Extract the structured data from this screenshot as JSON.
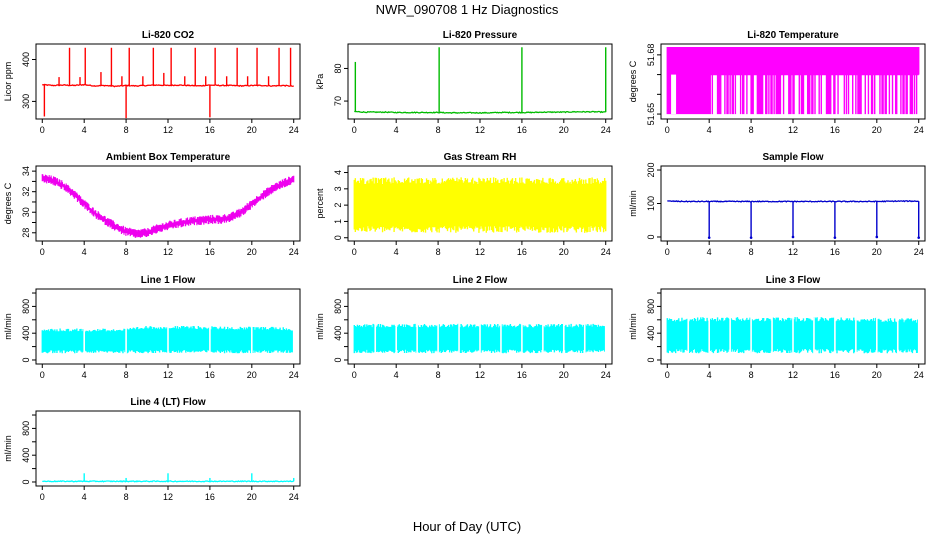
{
  "figure": {
    "title": "NWR_090708  1 Hz Diagnostics",
    "xlabel": "Hour of Day (UTC)"
  },
  "chart_data": [
    {
      "type": "line",
      "title": "Li-820 CO2",
      "ylabel": "Licor ppm",
      "xlim": [
        -0.6,
        24.6
      ],
      "ylim": [
        258,
        437
      ],
      "xticks": [
        0,
        4,
        8,
        12,
        16,
        20,
        24
      ],
      "yticks": [
        300,
        400
      ],
      "color": "#ff0000",
      "series": [
        {
          "x": [
            0,
            1,
            2,
            3,
            4,
            5,
            6,
            7,
            8,
            9,
            10,
            11,
            12,
            13,
            14,
            15,
            16,
            17,
            18,
            19,
            20,
            21,
            22,
            23,
            24
          ],
          "y": [
            340,
            338,
            339,
            338,
            340,
            337,
            338,
            336,
            338,
            337,
            338,
            339,
            338,
            339,
            338,
            337,
            339,
            338,
            338,
            337,
            338,
            338,
            337,
            338,
            336
          ]
        }
      ],
      "spikes": [
        {
          "x": 0.2,
          "y": 264
        },
        {
          "x": 1.6,
          "y": 358
        },
        {
          "x": 2.6,
          "y": 428
        },
        {
          "x": 3.6,
          "y": 358
        },
        {
          "x": 4.1,
          "y": 428
        },
        {
          "x": 5.6,
          "y": 370
        },
        {
          "x": 6.6,
          "y": 428
        },
        {
          "x": 7.6,
          "y": 360
        },
        {
          "x": 8.0,
          "y": 260
        },
        {
          "x": 8.3,
          "y": 428
        },
        {
          "x": 9.6,
          "y": 360
        },
        {
          "x": 10.6,
          "y": 428
        },
        {
          "x": 11.6,
          "y": 368
        },
        {
          "x": 12.3,
          "y": 428
        },
        {
          "x": 13.6,
          "y": 360
        },
        {
          "x": 14.6,
          "y": 428
        },
        {
          "x": 15.6,
          "y": 360
        },
        {
          "x": 16.0,
          "y": 262
        },
        {
          "x": 16.5,
          "y": 428
        },
        {
          "x": 17.6,
          "y": 360
        },
        {
          "x": 18.6,
          "y": 428
        },
        {
          "x": 19.6,
          "y": 360
        },
        {
          "x": 20.5,
          "y": 428
        },
        {
          "x": 21.6,
          "y": 360
        },
        {
          "x": 22.6,
          "y": 428
        },
        {
          "x": 23.7,
          "y": 428
        }
      ]
    },
    {
      "type": "line",
      "title": "Li-820 Pressure",
      "ylabel": "kPa",
      "xlim": [
        -0.6,
        24.6
      ],
      "ylim": [
        64.5,
        87.5
      ],
      "xticks": [
        0,
        4,
        8,
        12,
        16,
        20,
        24
      ],
      "yticks": [
        70,
        80
      ],
      "color": "#00bb00",
      "series": [
        {
          "x": [
            0,
            1,
            2,
            3,
            4,
            5,
            6,
            7,
            8,
            9,
            10,
            11,
            12,
            13,
            14,
            15,
            16,
            17,
            18,
            19,
            20,
            21,
            22,
            23,
            24
          ],
          "y": [
            66.8,
            66.6,
            66.6,
            66.6,
            66.5,
            66.5,
            66.5,
            66.5,
            66.5,
            66.4,
            66.4,
            66.4,
            66.4,
            66.4,
            66.5,
            66.5,
            66.5,
            66.5,
            66.6,
            66.6,
            66.6,
            66.7,
            66.7,
            66.7,
            66.6
          ]
        }
      ],
      "spikes": [
        {
          "x": 0.1,
          "y": 82
        },
        {
          "x": 8.1,
          "y": 86.5
        },
        {
          "x": 16.0,
          "y": 86.5
        },
        {
          "x": 24.0,
          "y": 86.5
        }
      ]
    },
    {
      "type": "line",
      "title": "Li-820 Temperature",
      "ylabel": "degrees C",
      "xlim": [
        -0.6,
        24.6
      ],
      "ylim": [
        51.6475,
        51.6855
      ],
      "xticks": [
        0,
        4,
        8,
        12,
        16,
        20,
        24
      ],
      "yticks": [
        51.65,
        51.66,
        51.67,
        51.68
      ],
      "ytick_labels": [
        "51.65",
        "",
        "",
        "51.68"
      ],
      "color": "#ff00ff",
      "band_low": 51.65,
      "band_high": 51.684,
      "mid_level": 51.67
    },
    {
      "type": "line",
      "title": "Ambient Box Temperature",
      "ylabel": "degrees C",
      "xlim": [
        -0.6,
        24.6
      ],
      "ylim": [
        27.2,
        34.5
      ],
      "xticks": [
        0,
        4,
        8,
        12,
        16,
        20,
        24
      ],
      "yticks": [
        28,
        29,
        30,
        31,
        32,
        33,
        34
      ],
      "ytick_labels": [
        "28",
        "",
        "30",
        "",
        "32",
        "",
        "34"
      ],
      "color": "#ee00ee",
      "series": [
        {
          "x": [
            0,
            1,
            2,
            3,
            4,
            5,
            6,
            7,
            8,
            9,
            10,
            11,
            12,
            13,
            14,
            15,
            16,
            17,
            18,
            19,
            20,
            21,
            22,
            23,
            24
          ],
          "y": [
            33.3,
            33.1,
            32.6,
            31.8,
            30.8,
            29.9,
            29.2,
            28.6,
            28.1,
            27.9,
            28.0,
            28.4,
            28.7,
            28.9,
            29.1,
            29.2,
            29.3,
            29.3,
            29.5,
            30.0,
            30.8,
            31.6,
            32.3,
            32.8,
            33.2
          ]
        }
      ],
      "noise": 0.35
    },
    {
      "type": "line",
      "title": "Gas Stream RH",
      "ylabel": "percent",
      "xlim": [
        -0.6,
        24.6
      ],
      "ylim": [
        -0.2,
        4.4
      ],
      "xticks": [
        0,
        4,
        8,
        12,
        16,
        20,
        24
      ],
      "yticks": [
        0,
        1,
        2,
        3,
        4
      ],
      "color": "#ffff00",
      "series": [
        {
          "x": [
            0,
            4,
            8,
            12,
            16,
            20,
            24
          ],
          "y": [
            2.1,
            2.1,
            2.0,
            2.1,
            2.1,
            2.0,
            2.1
          ]
        }
      ],
      "band_low": 0.3,
      "band_high": 3.7
    },
    {
      "type": "line",
      "title": "Sample Flow",
      "ylabel": "ml/min",
      "xlim": [
        -0.6,
        24.6
      ],
      "ylim": [
        -12,
        212
      ],
      "xticks": [
        0,
        4,
        8,
        12,
        16,
        20,
        24
      ],
      "yticks": [
        0,
        100,
        200
      ],
      "color": "#0000cc",
      "series": [
        {
          "x": [
            0,
            2,
            4,
            6,
            8,
            10,
            12,
            14,
            16,
            18,
            20,
            22,
            24
          ],
          "y": [
            107,
            106,
            106,
            106,
            106,
            106,
            106,
            106,
            106,
            106,
            106,
            107,
            107
          ]
        }
      ],
      "dips": [
        {
          "x": 4.0,
          "y": -2
        },
        {
          "x": 8.0,
          "y": -2
        },
        {
          "x": 12.0,
          "y": 0
        },
        {
          "x": 16.0,
          "y": -2
        },
        {
          "x": 20.0,
          "y": 0
        },
        {
          "x": 24.0,
          "y": -2
        }
      ]
    },
    {
      "type": "line",
      "title": "Line 1 Flow",
      "ylabel": "ml/min",
      "xlim": [
        -0.6,
        24.6
      ],
      "ylim": [
        -60,
        1060
      ],
      "xticks": [
        0,
        4,
        8,
        12,
        16,
        20,
        24
      ],
      "yticks": [
        0,
        200,
        400,
        600,
        800,
        1000
      ],
      "ytick_labels": [
        "0",
        "",
        "400",
        "",
        "800",
        ""
      ],
      "color": "#00ffff",
      "band_low": 100,
      "band_high_series": [
        {
          "x": 0,
          "y": 470
        },
        {
          "x": 4,
          "y": 470
        },
        {
          "x": 8,
          "y": 470
        },
        {
          "x": 10,
          "y": 510
        },
        {
          "x": 14,
          "y": 510
        },
        {
          "x": 18,
          "y": 500
        },
        {
          "x": 22,
          "y": 500
        },
        {
          "x": 24,
          "y": 480
        }
      ],
      "gaps": [
        4.0,
        8.0,
        12.0,
        16.0,
        20.0,
        24.0
      ]
    },
    {
      "type": "line",
      "title": "Line 2 Flow",
      "ylabel": "ml/min",
      "xlim": [
        -0.6,
        24.6
      ],
      "ylim": [
        -60,
        1060
      ],
      "xticks": [
        0,
        4,
        8,
        12,
        16,
        20,
        24
      ],
      "yticks": [
        0,
        200,
        400,
        600,
        800,
        1000
      ],
      "ytick_labels": [
        "0",
        "",
        "400",
        "",
        "800",
        ""
      ],
      "color": "#00ffff",
      "band_low": 100,
      "band_high_series": [
        {
          "x": 0,
          "y": 540
        },
        {
          "x": 8,
          "y": 540
        },
        {
          "x": 16,
          "y": 540
        },
        {
          "x": 24,
          "y": 540
        }
      ],
      "gaps": [
        2.0,
        4.0,
        6.0,
        8.0,
        10.0,
        12.0,
        14.0,
        16.0,
        18.0,
        20.0,
        22.0,
        24.0
      ]
    },
    {
      "type": "line",
      "title": "Line 3 Flow",
      "ylabel": "ml/min",
      "xlim": [
        -0.6,
        24.6
      ],
      "ylim": [
        -60,
        1060
      ],
      "xticks": [
        0,
        4,
        8,
        12,
        16,
        20,
        24
      ],
      "yticks": [
        0,
        200,
        400,
        600,
        800,
        1000
      ],
      "ytick_labels": [
        "0",
        "",
        "400",
        "",
        "800",
        ""
      ],
      "color": "#00ffff",
      "band_low": 100,
      "band_high_series": [
        {
          "x": 0,
          "y": 640
        },
        {
          "x": 8,
          "y": 640
        },
        {
          "x": 16,
          "y": 640
        },
        {
          "x": 24,
          "y": 620
        }
      ],
      "gaps": [
        2.0,
        4.0,
        6.0,
        8.0,
        10.0,
        12.0,
        14.0,
        16.0,
        18.0,
        20.0,
        22.0,
        24.0
      ]
    },
    {
      "type": "line",
      "title": "Line 4 (LT) Flow",
      "ylabel": "ml/min",
      "xlim": [
        -0.6,
        24.6
      ],
      "ylim": [
        -60,
        1060
      ],
      "xticks": [
        0,
        4,
        8,
        12,
        16,
        20,
        24
      ],
      "yticks": [
        0,
        200,
        400,
        600,
        800,
        1000
      ],
      "ytick_labels": [
        "0",
        "",
        "400",
        "",
        "800",
        ""
      ],
      "color": "#00ffff",
      "series": [
        {
          "x": [
            0,
            4,
            8,
            12,
            16,
            20,
            24
          ],
          "y": [
            10,
            10,
            10,
            10,
            10,
            10,
            10
          ]
        }
      ],
      "spikes": [
        {
          "x": 4.0,
          "y": 130
        },
        {
          "x": 8.0,
          "y": 60
        },
        {
          "x": 12.0,
          "y": 130
        },
        {
          "x": 16.0,
          "y": 60
        },
        {
          "x": 20.0,
          "y": 130
        },
        {
          "x": 24.0,
          "y": 60
        }
      ]
    }
  ]
}
